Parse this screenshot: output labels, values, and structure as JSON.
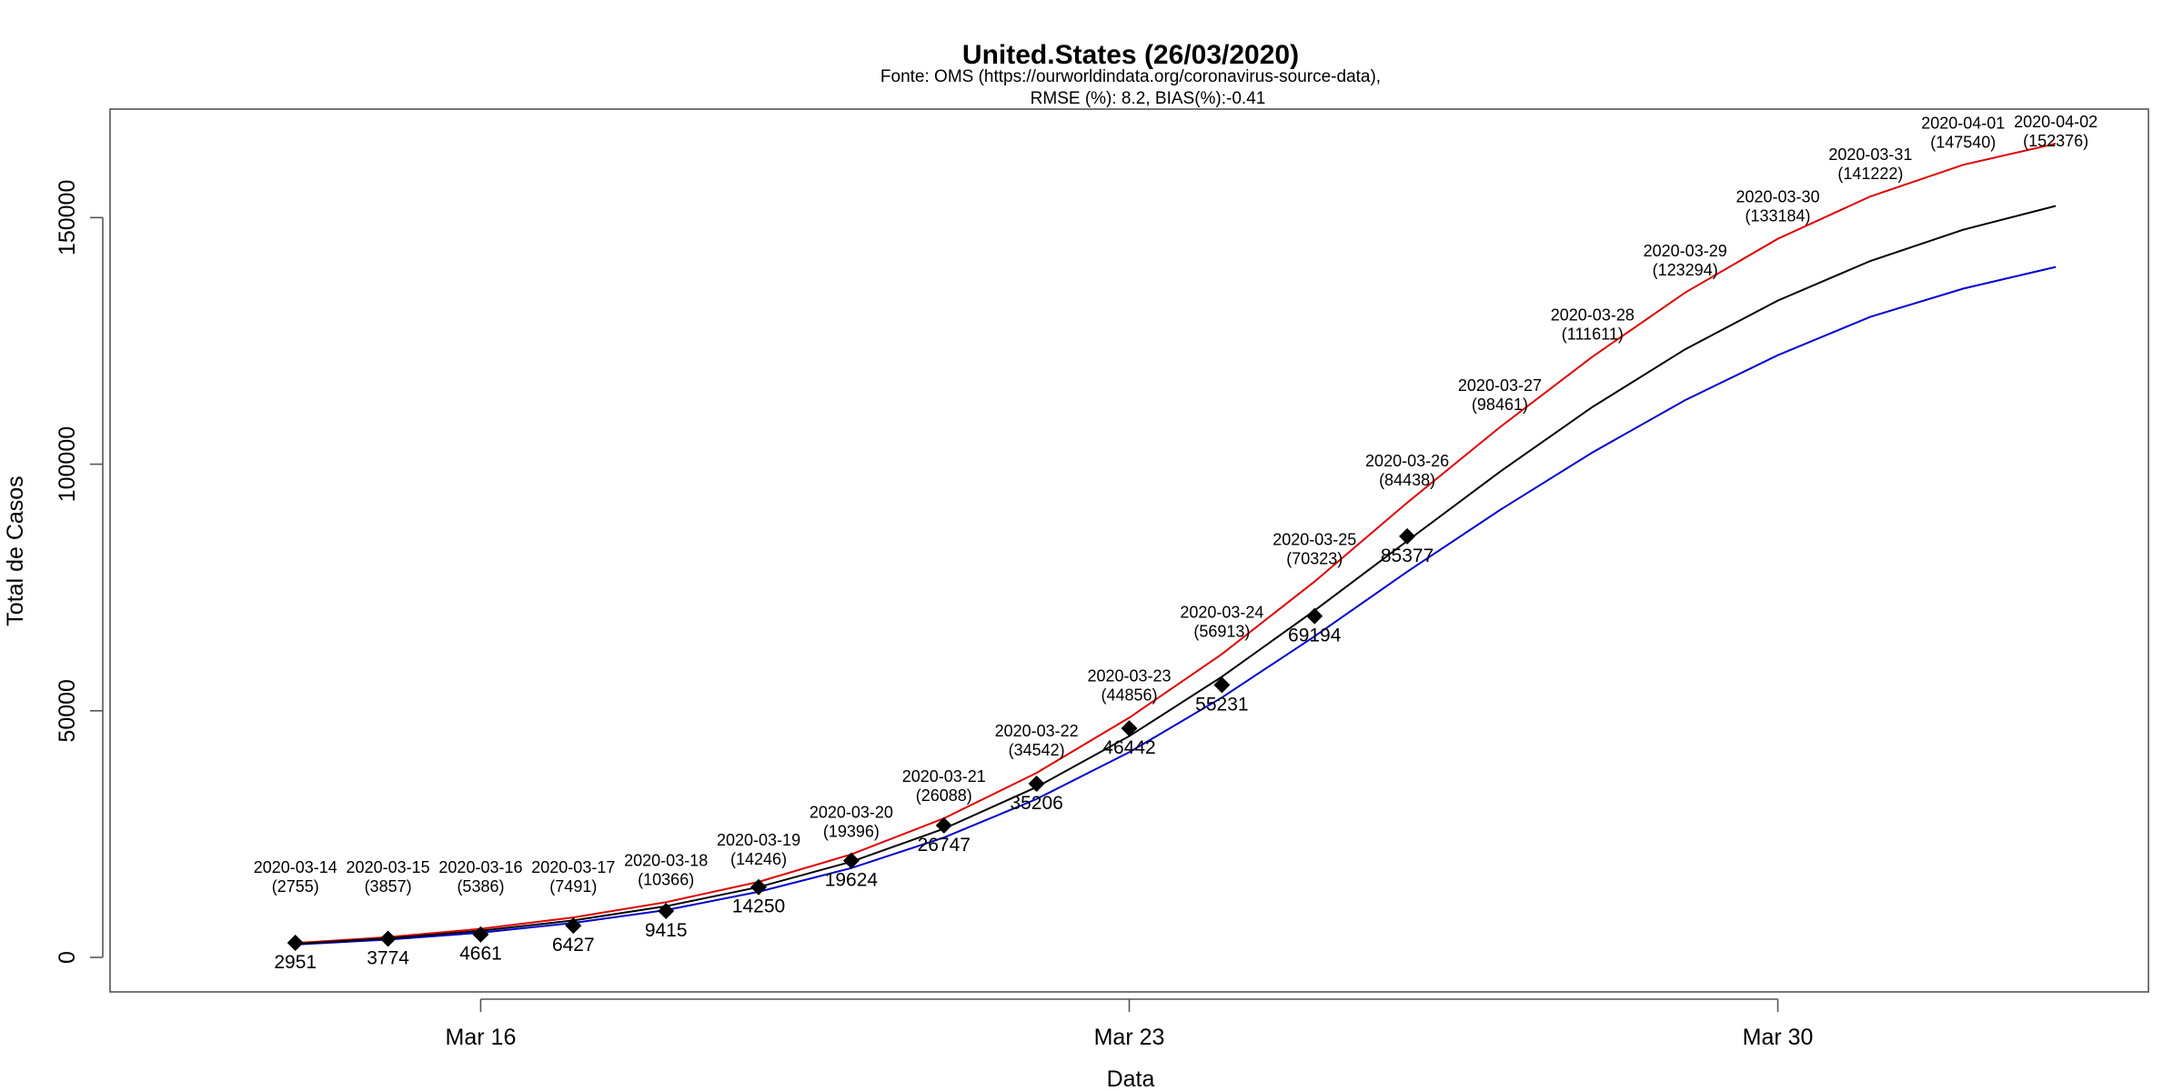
{
  "chart_data": {
    "type": "line",
    "title": "United.States (26/03/2020)",
    "subtitle_lines": [
      "Fonte: OMS (https://ourworldindata.org/coronavirus-source-data),",
      "RMSE (%): 8.2, BIAS(%):-0.41"
    ],
    "xlabel": "Data",
    "ylabel": "Total de Casos",
    "x_ticks": [
      {
        "date": "2020-03-16",
        "label": "Mar 16"
      },
      {
        "date": "2020-03-23",
        "label": "Mar 23"
      },
      {
        "date": "2020-03-30",
        "label": "Mar 30"
      }
    ],
    "y_ticks": [
      0,
      50000,
      100000,
      150000
    ],
    "xlim": [
      "2020-03-12",
      "2020-04-03"
    ],
    "ylim": [
      -7000,
      172000
    ],
    "dates": [
      "2020-03-14",
      "2020-03-15",
      "2020-03-16",
      "2020-03-17",
      "2020-03-18",
      "2020-03-19",
      "2020-03-20",
      "2020-03-21",
      "2020-03-22",
      "2020-03-23",
      "2020-03-24",
      "2020-03-25",
      "2020-03-26",
      "2020-03-27",
      "2020-03-28",
      "2020-03-29",
      "2020-03-30",
      "2020-03-31",
      "2020-04-01",
      "2020-04-02"
    ],
    "series": [
      {
        "color": "#000000",
        "values": [
          2755,
          3857,
          5386,
          7491,
          10366,
          14246,
          19396,
          26088,
          34542,
          44856,
          56913,
          70323,
          84438,
          98461,
          111611,
          123294,
          133184,
          141222,
          147540,
          152376
        ]
      },
      {
        "color": "#dd0000",
        "values": [
          2900,
          4100,
          5800,
          8100,
          11200,
          15300,
          20900,
          28200,
          37400,
          48600,
          61500,
          76200,
          92200,
          107500,
          121800,
          134800,
          145700,
          154300,
          160700,
          165000
        ]
      },
      {
        "color": "#0000cc",
        "values": [
          2600,
          3600,
          5000,
          7000,
          9600,
          13300,
          18100,
          24300,
          32100,
          41600,
          52700,
          65100,
          78200,
          90700,
          102400,
          113000,
          122100,
          129900,
          135600,
          140000
        ]
      }
    ],
    "observed": {
      "dates": [
        "2020-03-14",
        "2020-03-15",
        "2020-03-16",
        "2020-03-17",
        "2020-03-18",
        "2020-03-19",
        "2020-03-20",
        "2020-03-21",
        "2020-03-22",
        "2020-03-23",
        "2020-03-24",
        "2020-03-25",
        "2020-03-26"
      ],
      "values": [
        2951,
        3774,
        4661,
        6427,
        9415,
        14250,
        19624,
        26747,
        35206,
        46442,
        55231,
        69194,
        85377
      ],
      "labels": [
        "2951",
        "3774",
        "4661",
        "6427",
        "9415",
        "14250",
        "19624",
        "26747",
        "35206",
        "46442",
        "55231",
        "69194",
        "85377"
      ]
    },
    "annotations": [
      {
        "date": "2020-03-14",
        "label": "2020-03-14",
        "value_label": "(2755)"
      },
      {
        "date": "2020-03-15",
        "label": "2020-03-15",
        "value_label": "(3857)"
      },
      {
        "date": "2020-03-16",
        "label": "2020-03-16",
        "value_label": "(5386)"
      },
      {
        "date": "2020-03-17",
        "label": "2020-03-17",
        "value_label": "(7491)"
      },
      {
        "date": "2020-03-18",
        "label": "2020-03-18",
        "value_label": "(10366)"
      },
      {
        "date": "2020-03-19",
        "label": "2020-03-19",
        "value_label": "(14246)"
      },
      {
        "date": "2020-03-20",
        "label": "2020-03-20",
        "value_label": "(19396)"
      },
      {
        "date": "2020-03-21",
        "label": "2020-03-21",
        "value_label": "(26088)"
      },
      {
        "date": "2020-03-22",
        "label": "2020-03-22",
        "value_label": "(34542)"
      },
      {
        "date": "2020-03-23",
        "label": "2020-03-23",
        "value_label": "(44856)"
      },
      {
        "date": "2020-03-24",
        "label": "2020-03-24",
        "value_label": "(56913)"
      },
      {
        "date": "2020-03-25",
        "label": "2020-03-25",
        "value_label": "(70323)"
      },
      {
        "date": "2020-03-26",
        "label": "2020-03-26",
        "value_label": "(84438)"
      },
      {
        "date": "2020-03-27",
        "label": "2020-03-27",
        "value_label": "(98461)"
      },
      {
        "date": "2020-03-28",
        "label": "2020-03-28",
        "value_label": "(111611)"
      },
      {
        "date": "2020-03-29",
        "label": "2020-03-29",
        "value_label": "(123294)"
      },
      {
        "date": "2020-03-30",
        "label": "2020-03-30",
        "value_label": "(133184)"
      },
      {
        "date": "2020-03-31",
        "label": "2020-03-31",
        "value_label": "(141222)"
      },
      {
        "date": "2020-04-01",
        "label": "2020-04-01",
        "value_label": "(147540)"
      },
      {
        "date": "2020-04-02",
        "label": "2020-04-02",
        "value_label": "(152376)"
      }
    ],
    "grid": false,
    "legend": "none"
  }
}
